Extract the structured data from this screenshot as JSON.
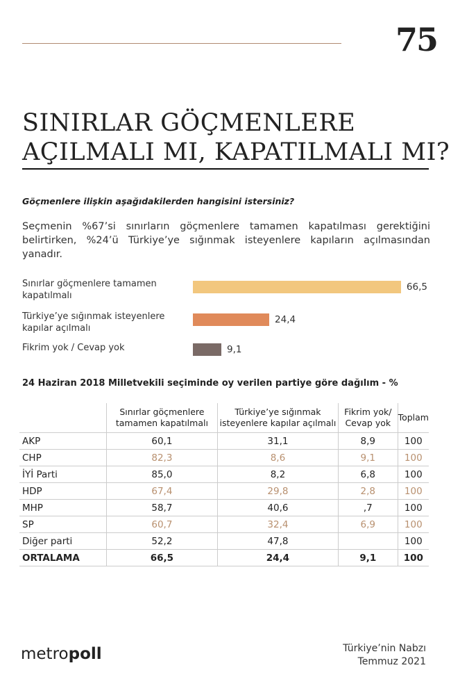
{
  "header": {
    "page_number": "75",
    "title_lines": [
      "SINIRLAR GÖÇMENLERE",
      "AÇILMALI MI, KAPATILMALI MI?"
    ]
  },
  "question": "Göçmenlere ilişkin aşağıdakilerden hangisini istersiniz?",
  "summary": "Seçmenin %67’si sınırların göçmenlere tamamen kapatılması gerektiğini belirtirken, %24’ü Türkiye’ye sığınmak isteyenlere kapıların açılmasından yanadır.",
  "chart_data": {
    "type": "bar",
    "orientation": "horizontal",
    "categories": [
      "Sınırlar göçmenlere tamamen kapatılmalı",
      "Türkiye’ye sığınmak isteyenlere kapılar açılmalı",
      "Fikrim yok / Cevap yok"
    ],
    "values": [
      66.5,
      24.4,
      9.1
    ],
    "value_labels": [
      "66,5",
      "24,4",
      "9,1"
    ],
    "colors": [
      "#f2c77e",
      "#e08a5a",
      "#7a6a66"
    ]
  },
  "table": {
    "title": "24 Haziran 2018 Milletvekili seçiminde oy verilen partiye göre dağılım - %",
    "columns": [
      "Sınırlar göçmenlere tamamen kapatılmalı",
      "Türkiye’ye sığınmak isteyenlere kapılar açılmalı",
      "Fikrim yok/ Cevap yok",
      "Toplam"
    ],
    "rows": [
      {
        "label": "AKP",
        "cells": [
          "60,1",
          "31,1",
          "8,9",
          "100"
        ]
      },
      {
        "label": "CHP",
        "cells": [
          "82,3",
          "8,6",
          "9,1",
          "100"
        ]
      },
      {
        "label": "İYİ Parti",
        "cells": [
          "85,0",
          "8,2",
          "6,8",
          "100"
        ]
      },
      {
        "label": "HDP",
        "cells": [
          "67,4",
          "29,8",
          "2,8",
          "100"
        ]
      },
      {
        "label": "MHP",
        "cells": [
          "58,7",
          "40,6",
          ",7",
          "100"
        ]
      },
      {
        "label": "SP",
        "cells": [
          "60,7",
          "32,4",
          "6,9",
          "100"
        ]
      },
      {
        "label": "Diğer parti",
        "cells": [
          "52,2",
          "47,8",
          null,
          "100"
        ]
      },
      {
        "label": "ORTALAMA",
        "cells": [
          "66,5",
          "24,4",
          "9,1",
          "100"
        ]
      }
    ]
  },
  "footer": {
    "logo": [
      "metro",
      "poll"
    ],
    "publication": "Türkiye’nin Nabzı",
    "date": "Temmuz 2021"
  }
}
